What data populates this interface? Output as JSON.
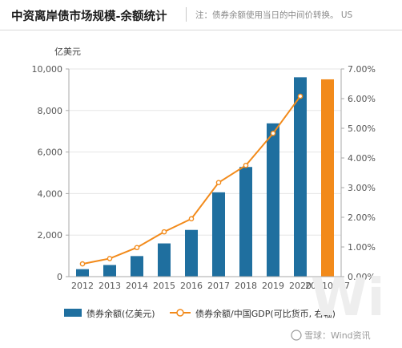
{
  "header": {
    "title": "中资离岸债市场规模-余额统计",
    "note": "注：债券余额使用当日的中间价转换。 US"
  },
  "watermark": {
    "text": "雪球：Wind资讯"
  },
  "colors": {
    "bar_primary": "#1f6f9f",
    "bar_highlight": "#f28a1a",
    "line": "#f28a1a",
    "axis": "#aaaaaa"
  },
  "chart_data": {
    "type": "bar",
    "categories": [
      "2012",
      "2013",
      "2014",
      "2015",
      "2016",
      "2017",
      "2018",
      "2019",
      "2020",
      "20210707"
    ],
    "y_unit_label": "亿美元",
    "ylim": [
      0,
      10000
    ],
    "y_ticks": [
      "0",
      "2,000",
      "4,000",
      "6,000",
      "8,000",
      "10,000"
    ],
    "y2lim": [
      0,
      7
    ],
    "y2_ticks": [
      "0.00%",
      "1.00%",
      "2.00%",
      "3.00%",
      "4.00%",
      "5.00%",
      "6.00%",
      "7.00%"
    ],
    "series": [
      {
        "name": "债券余额(亿美元)",
        "kind": "bar",
        "axis": "left",
        "values": [
          360,
          560,
          990,
          1600,
          2250,
          4060,
          5280,
          7380,
          9600,
          9500
        ],
        "highlight_last": true
      },
      {
        "name": "债券余额/中国GDP(可比货币, 右轴)",
        "kind": "line",
        "axis": "right",
        "unit": "%",
        "values": [
          0.43,
          0.61,
          0.98,
          1.51,
          1.95,
          3.17,
          3.75,
          4.83,
          6.08,
          null
        ]
      }
    ],
    "legend_position": "bottom"
  }
}
